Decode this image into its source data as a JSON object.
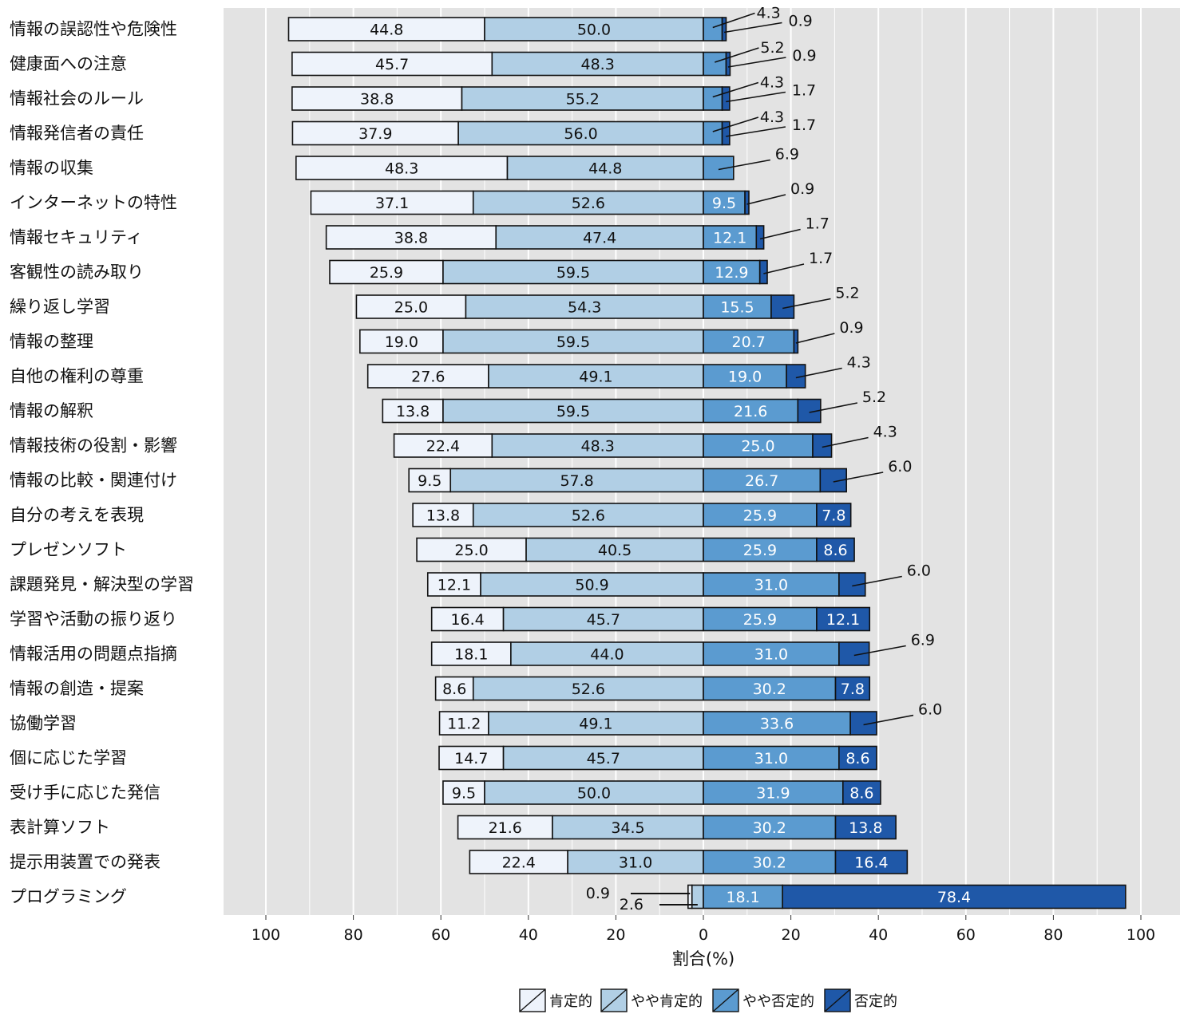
{
  "chart_data": {
    "type": "bar",
    "stacked": "diverging",
    "xlabel": "割合(%)",
    "x_ticks": [
      "100",
      "80",
      "60",
      "40",
      "20",
      "0",
      "20",
      "40",
      "60",
      "80",
      "100"
    ],
    "xlim": [
      -100,
      100
    ],
    "legend_position": "bottom",
    "grid": true,
    "categories": [
      "情報の誤認性や危険性",
      "健康面への注意",
      "情報社会のルール",
      "情報発信者の責任",
      "情報の収集",
      "インターネットの特性",
      "情報セキュリティ",
      "客観性の読み取り",
      "繰り返し学習",
      "情報の整理",
      "自他の権利の尊重",
      "情報の解釈",
      "情報技術の役割・影響",
      "情報の比較・関連付け",
      "自分の考えを表現",
      "プレゼンソフト",
      "課題発見・解決型の学習",
      "学習や活動の振り返り",
      "情報活用の問題点指摘",
      "情報の創造・提案",
      "協働学習",
      "個に応じた学習",
      "受け手に応じた発信",
      "表計算ソフト",
      "提示用装置での発表",
      "プログラミング"
    ],
    "series": [
      {
        "name": "肯定的",
        "color": "#eef3fb",
        "side": "left",
        "values": [
          44.8,
          45.7,
          38.8,
          37.9,
          48.3,
          37.1,
          38.8,
          25.9,
          25.0,
          19.0,
          27.6,
          13.8,
          22.4,
          9.5,
          13.8,
          25.0,
          12.1,
          16.4,
          18.1,
          8.6,
          11.2,
          14.7,
          9.5,
          21.6,
          22.4,
          0.9
        ]
      },
      {
        "name": "やや肯定的",
        "color": "#b1cfe5",
        "side": "left",
        "values": [
          50.0,
          48.3,
          55.2,
          56.0,
          44.8,
          52.6,
          47.4,
          59.5,
          54.3,
          59.5,
          49.1,
          59.5,
          48.3,
          57.8,
          52.6,
          40.5,
          50.9,
          45.7,
          44.0,
          52.6,
          49.1,
          45.7,
          50.0,
          34.5,
          31.0,
          2.6
        ]
      },
      {
        "name": "やや否定的",
        "color": "#5b9bd0",
        "side": "right",
        "values": [
          4.3,
          5.2,
          4.3,
          4.3,
          6.9,
          9.5,
          12.1,
          12.9,
          15.5,
          20.7,
          19.0,
          21.6,
          25.0,
          26.7,
          25.9,
          25.9,
          31.0,
          25.9,
          31.0,
          30.2,
          33.6,
          31.0,
          31.9,
          30.2,
          30.2,
          18.1
        ]
      },
      {
        "name": "否定的",
        "color": "#1f58a8",
        "side": "right",
        "values": [
          0.9,
          0.9,
          1.7,
          1.7,
          0.0,
          0.9,
          1.7,
          1.7,
          5.2,
          0.9,
          4.3,
          5.2,
          4.3,
          6.0,
          7.8,
          8.6,
          6.0,
          12.1,
          6.9,
          7.8,
          6.0,
          8.6,
          8.6,
          13.8,
          16.4,
          78.4
        ]
      }
    ],
    "value_labels": [
      [
        "44.8",
        "50.0",
        "4.3",
        "0.9"
      ],
      [
        "45.7",
        "48.3",
        "5.2",
        "0.9"
      ],
      [
        "38.8",
        "55.2",
        "4.3",
        "1.7"
      ],
      [
        "37.9",
        "56.0",
        "4.3",
        "1.7"
      ],
      [
        "48.3",
        "44.8",
        "6.9",
        ""
      ],
      [
        "37.1",
        "52.6",
        "9.5",
        "0.9"
      ],
      [
        "38.8",
        "47.4",
        "12.1",
        "1.7"
      ],
      [
        "25.9",
        "59.5",
        "12.9",
        "1.7"
      ],
      [
        "25.0",
        "54.3",
        "15.5",
        "5.2"
      ],
      [
        "19.0",
        "59.5",
        "20.7",
        "0.9"
      ],
      [
        "27.6",
        "49.1",
        "19.0",
        "4.3"
      ],
      [
        "13.8",
        "59.5",
        "21.6",
        "5.2"
      ],
      [
        "22.4",
        "48.3",
        "25.0",
        "4.3"
      ],
      [
        "9.5",
        "57.8",
        "26.7",
        "6.0"
      ],
      [
        "13.8",
        "52.6",
        "25.9",
        "7.8"
      ],
      [
        "25.0",
        "40.5",
        "25.9",
        "8.6"
      ],
      [
        "12.1",
        "50.9",
        "31.0",
        "6.0"
      ],
      [
        "16.4",
        "45.7",
        "25.9",
        "12.1"
      ],
      [
        "18.1",
        "44.0",
        "31.0",
        "6.9"
      ],
      [
        "8.6",
        "52.6",
        "30.2",
        "7.8"
      ],
      [
        "11.2",
        "49.1",
        "33.6",
        "6.0"
      ],
      [
        "14.7",
        "45.7",
        "31.0",
        "8.6"
      ],
      [
        "9.5",
        "50.0",
        "31.9",
        "8.6"
      ],
      [
        "21.6",
        "34.5",
        "30.2",
        "13.8"
      ],
      [
        "22.4",
        "31.0",
        "30.2",
        "16.4"
      ],
      [
        "0.9",
        "2.6",
        "18.1",
        "78.4"
      ]
    ]
  }
}
